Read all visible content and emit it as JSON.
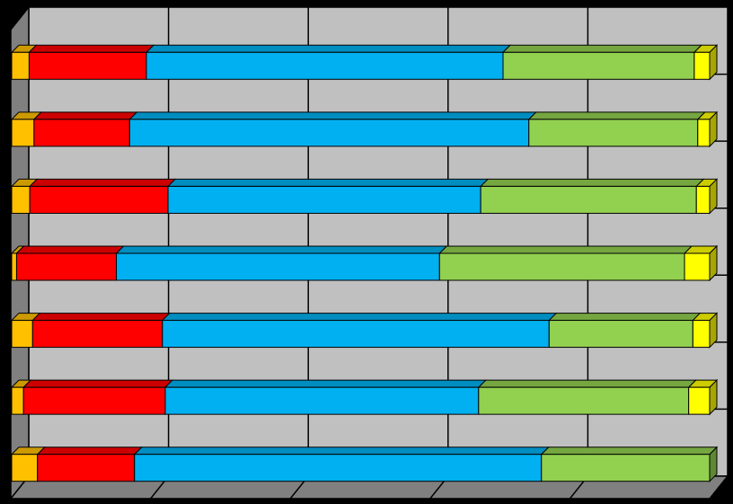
{
  "chart_data": {
    "type": "bar",
    "orientation": "horizontal",
    "stacked": true,
    "percent_stacked": true,
    "three_d": true,
    "grid": true,
    "legend": "none",
    "xlim": [
      0,
      100
    ],
    "categories": [
      "",
      "",
      "",
      "",
      "",
      "",
      ""
    ],
    "series": [
      {
        "color": "#FFC000",
        "values": [
          2.5,
          3.2,
          2.6,
          0.7,
          3.0,
          1.7,
          3.7
        ]
      },
      {
        "color": "#FF0000",
        "values": [
          16.8,
          13.7,
          19.8,
          14.3,
          18.6,
          20.3,
          13.9
        ]
      },
      {
        "color": "#00B0F0",
        "values": [
          51.1,
          57.2,
          44.8,
          46.3,
          55.4,
          44.9,
          58.3
        ]
      },
      {
        "color": "#92D050",
        "values": [
          27.4,
          24.2,
          30.9,
          35.1,
          20.6,
          30.1,
          24.1
        ]
      },
      {
        "color": "#FFFF00",
        "values": [
          2.2,
          1.7,
          1.9,
          3.6,
          2.4,
          3.0,
          0.0
        ]
      }
    ]
  }
}
